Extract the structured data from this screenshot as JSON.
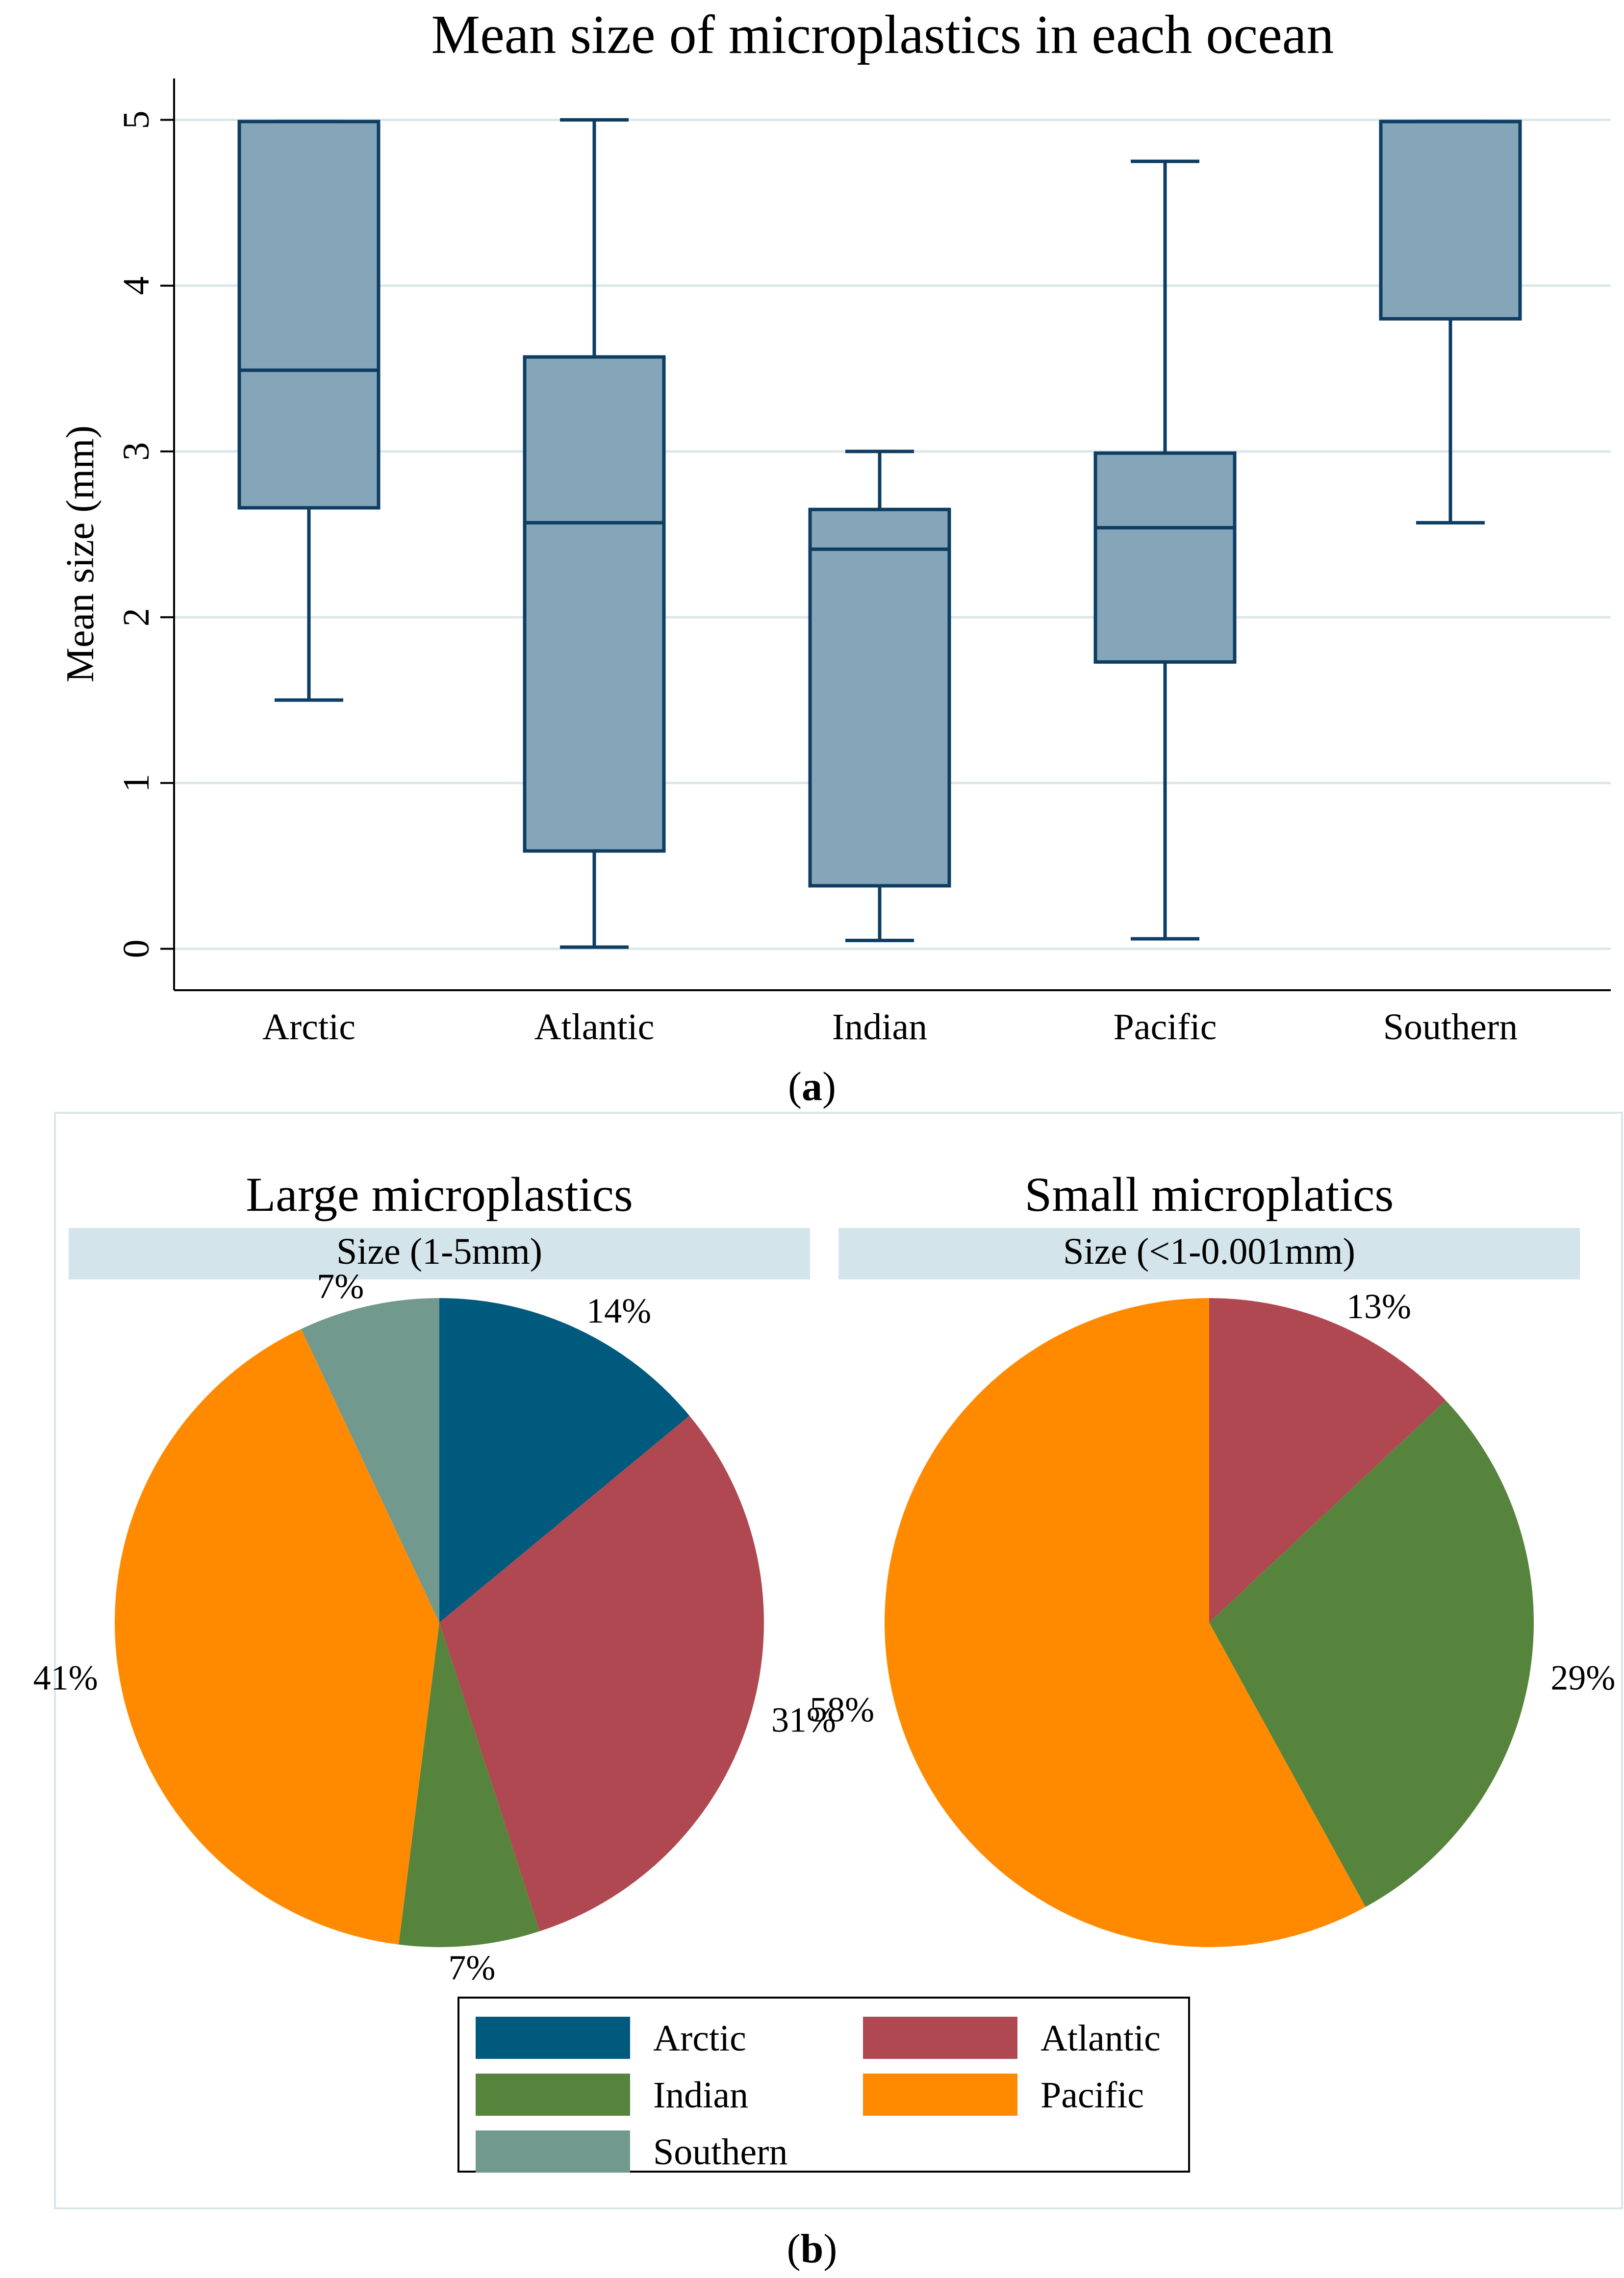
{
  "colors": {
    "box_fill": "#85a5b9",
    "box_stroke": "#0e3d63",
    "grid": "#dce7ea",
    "strip": "#d3e4ea",
    "arctic": "#005a7e",
    "atlantic": "#b04851",
    "indian": "#57843d",
    "pacific": "#ff8a00",
    "southern": "#72998d",
    "frame": "#d8e6e9"
  },
  "chart_data": [
    {
      "type": "box",
      "panel_label_bold": "a",
      "title": "Mean size of microplastics in each ocean",
      "xlabel": "",
      "ylabel": "Mean size (mm)",
      "ylim": [
        -0.25,
        5.25
      ],
      "yticks": [
        "0",
        "1",
        "2",
        "3",
        "4",
        "5"
      ],
      "categories": [
        "Arctic",
        "Atlantic",
        "Indian",
        "Pacific",
        "Southern"
      ],
      "boxes": [
        {
          "name": "Arctic",
          "whisker_low": 1.5,
          "q1": 2.66,
          "median": 3.49,
          "q3": 4.99,
          "whisker_high": 4.99
        },
        {
          "name": "Atlantic",
          "whisker_low": 0.01,
          "q1": 0.59,
          "median": 2.57,
          "q3": 3.57,
          "whisker_high": 5.0
        },
        {
          "name": "Indian",
          "whisker_low": 0.05,
          "q1": 0.38,
          "median": 2.41,
          "q3": 2.65,
          "whisker_high": 3.0
        },
        {
          "name": "Pacific",
          "whisker_low": 0.06,
          "q1": 1.73,
          "median": 2.54,
          "q3": 2.99,
          "whisker_high": 4.75
        },
        {
          "name": "Southern",
          "whisker_low": 2.57,
          "q1": 3.8,
          "median": 4.99,
          "q3": 4.99,
          "whisker_high": 4.99
        }
      ]
    },
    {
      "type": "pie",
      "title": "Large microplastics",
      "strip_label": "Size (1-5mm)",
      "slices": [
        {
          "name": "Arctic",
          "value": 14,
          "label": "14%"
        },
        {
          "name": "Atlantic",
          "value": 31,
          "label": "31%"
        },
        {
          "name": "Indian",
          "value": 7,
          "label": "7%"
        },
        {
          "name": "Pacific",
          "value": 41,
          "label": "41%"
        },
        {
          "name": "Southern",
          "value": 7,
          "label": "7%"
        }
      ]
    },
    {
      "type": "pie",
      "title": "Small microplatics",
      "strip_label": "Size (<1-0.001mm)",
      "slices": [
        {
          "name": "Atlantic",
          "value": 13,
          "label": "13%"
        },
        {
          "name": "Indian",
          "value": 29,
          "label": "29%"
        },
        {
          "name": "Pacific",
          "value": 58,
          "label": "58%"
        }
      ]
    }
  ],
  "legend": {
    "items": [
      "Arctic",
      "Atlantic",
      "Indian",
      "Pacific",
      "Southern"
    ]
  },
  "panel_b_label_bold": "b",
  "panel_paren_open": "(",
  "panel_paren_close": ")"
}
